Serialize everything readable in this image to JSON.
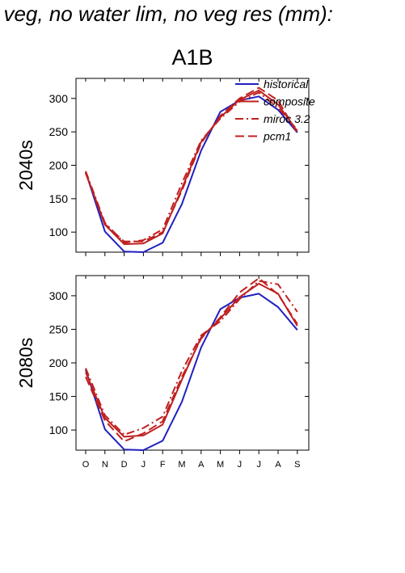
{
  "title": "f veg, no water lim, no veg res (mm):",
  "scenario": "A1B",
  "chart_data": {
    "type": "line",
    "months": [
      "O",
      "N",
      "D",
      "J",
      "F",
      "M",
      "A",
      "M",
      "J",
      "J",
      "A",
      "S"
    ],
    "ylim": [
      70,
      330
    ],
    "yticks": [
      100,
      150,
      200,
      250,
      300
    ],
    "legend": [
      {
        "name": "historical",
        "color": "#2020c0",
        "dash": "solid"
      },
      {
        "name": "composite",
        "color": "#c02020",
        "dash": "solid"
      },
      {
        "name": "miroc 3.2",
        "color": "#c02020",
        "dash": "dashdot"
      },
      {
        "name": "pcm1",
        "color": "#c02020",
        "dash": "dashed"
      }
    ],
    "legend_position": "top-right",
    "panels": [
      {
        "label": "2040s",
        "series": [
          {
            "name": "historical",
            "values": [
              190,
              101,
              71,
              70,
              84,
              142,
              222,
              280,
              297,
              303,
              283,
              249
            ]
          },
          {
            "name": "composite",
            "values": [
              189,
              111,
              82,
              83,
              98,
              165,
              235,
              272,
              298,
              312,
              291,
              251
            ]
          },
          {
            "name": "miroc 3.2",
            "values": [
              191,
              114,
              84,
              88,
              104,
              173,
              237,
              270,
              295,
              309,
              286,
              253
            ]
          },
          {
            "name": "pcm1",
            "values": [
              188,
              112,
              86,
              86,
              100,
              162,
              233,
              274,
              300,
              316,
              297,
              248
            ]
          }
        ]
      },
      {
        "label": "2080s",
        "series": [
          {
            "name": "historical",
            "values": [
              190,
              101,
              71,
              70,
              84,
              142,
              223,
              280,
              297,
              303,
              283,
              249
            ]
          },
          {
            "name": "composite",
            "values": [
              186,
              118,
              90,
              92,
              108,
              175,
              238,
              266,
              298,
              318,
              303,
              255
            ]
          },
          {
            "name": "miroc 3.2",
            "values": [
              192,
              122,
              93,
              103,
              120,
              188,
              241,
              262,
              295,
              322,
              317,
              276
            ]
          },
          {
            "name": "pcm1",
            "values": [
              179,
              114,
              83,
              95,
              113,
              179,
              236,
              268,
              305,
              326,
              302,
              258
            ]
          }
        ]
      }
    ]
  }
}
